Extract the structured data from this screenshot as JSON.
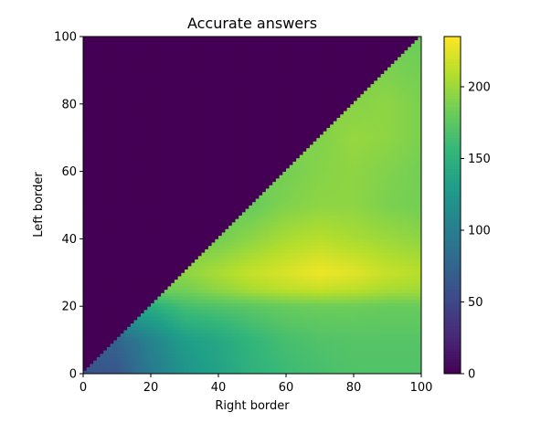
{
  "chart_data": {
    "type": "heatmap",
    "title": "Accurate answers",
    "xlabel": "Right border",
    "ylabel": "Left border",
    "xlim": [
      0,
      100
    ],
    "ylim": [
      0,
      100
    ],
    "x_ticks": [
      "0",
      "20",
      "40",
      "60",
      "80",
      "100"
    ],
    "y_ticks": [
      "0",
      "20",
      "40",
      "60",
      "80",
      "100"
    ],
    "mask": "cells with left border > right border have value 0",
    "colormap": "viridis",
    "colorbar": {
      "min": 0,
      "max": 235,
      "ticks": [
        "0",
        "50",
        "100",
        "150",
        "200"
      ]
    },
    "grid": false,
    "right_border_columns": [
      0,
      10,
      20,
      30,
      40,
      50,
      60,
      70,
      80,
      90,
      100
    ],
    "left_border_rows": [
      {
        "left_border": 0,
        "values": [
          60,
          62,
          95,
          120,
          135,
          150,
          160,
          165,
          170,
          170,
          170
        ]
      },
      {
        "left_border": 10,
        "values": [
          0,
          75,
          105,
          130,
          140,
          155,
          165,
          170,
          172,
          172,
          172
        ]
      },
      {
        "left_border": 20,
        "values": [
          0,
          0,
          145,
          165,
          170,
          175,
          180,
          182,
          182,
          180,
          180
        ]
      },
      {
        "left_border": 25,
        "values": [
          0,
          0,
          0,
          185,
          195,
          205,
          212,
          215,
          212,
          205,
          202
        ]
      },
      {
        "left_border": 30,
        "values": [
          0,
          0,
          0,
          195,
          205,
          215,
          222,
          230,
          225,
          215,
          210
        ]
      },
      {
        "left_border": 40,
        "values": [
          0,
          0,
          0,
          0,
          185,
          195,
          205,
          210,
          205,
          200,
          195
        ]
      },
      {
        "left_border": 50,
        "values": [
          0,
          0,
          0,
          0,
          0,
          180,
          190,
          195,
          195,
          188,
          185
        ]
      },
      {
        "left_border": 60,
        "values": [
          0,
          0,
          0,
          0,
          0,
          0,
          185,
          192,
          195,
          190,
          185
        ]
      },
      {
        "left_border": 70,
        "values": [
          0,
          0,
          0,
          0,
          0,
          0,
          0,
          190,
          198,
          195,
          188
        ]
      },
      {
        "left_border": 80,
        "values": [
          0,
          0,
          0,
          0,
          0,
          0,
          0,
          0,
          192,
          195,
          188
        ]
      },
      {
        "left_border": 90,
        "values": [
          0,
          0,
          0,
          0,
          0,
          0,
          0,
          0,
          0,
          188,
          185
        ]
      },
      {
        "left_border": 100,
        "values": [
          0,
          0,
          0,
          0,
          0,
          0,
          0,
          0,
          0,
          0,
          182
        ]
      }
    ]
  }
}
